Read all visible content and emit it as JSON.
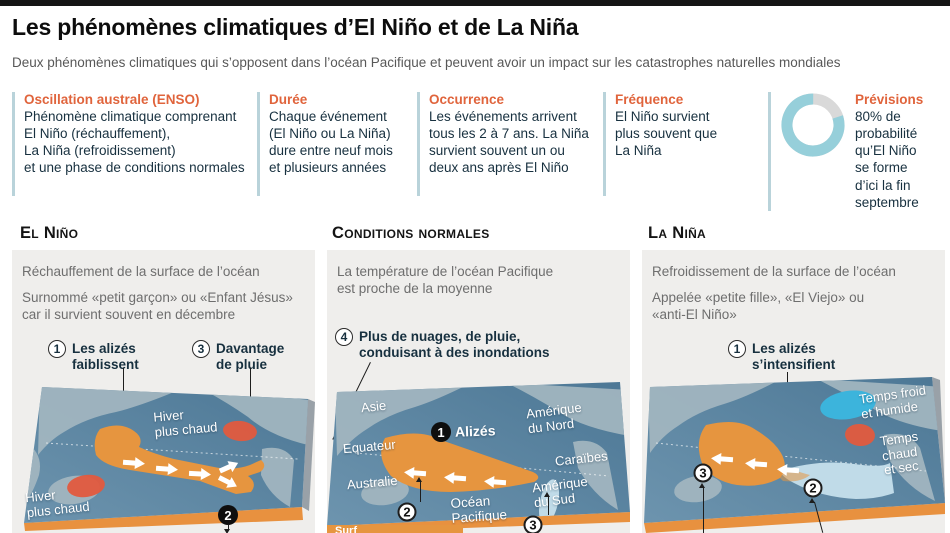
{
  "page": {
    "title": "Les phénomènes climatiques d’El Niño et de La Niña",
    "subtitle": "Deux phénomènes climatiques qui s’opposent dans l’océan Pacifique et peuvent avoir un impact sur les catastrophes naturelles mondiales"
  },
  "colors": {
    "accent_orange": "#e0643c",
    "navy_text": "#17303f",
    "divider_blue": "#b9d3da",
    "panel_gray": "#efeeec",
    "warm_orange": "#e6953f",
    "hot_red": "#e15a3e",
    "cool_blue": "#cbe4ef",
    "cold_cyan": "#3cb4dc",
    "donut_blue": "#96cfda",
    "donut_gray": "#d9d9d9"
  },
  "info_boxes": [
    {
      "heading": "Oscillation australe (ENSO)",
      "body": "Phénomène climatique comprenant\nEl Niño (réchauffement),\nLa Niña (refroidissement)\net une phase de conditions normales"
    },
    {
      "heading": "Durée",
      "body": "Chaque événement\n(El Niño ou La Niña)\ndure entre neuf mois\net plusieurs années"
    },
    {
      "heading": "Occurrence",
      "body": "Les événements arrivent\ntous les 2 à 7 ans. La Niña\nsurvient souvent un ou\ndeux ans après El Niño"
    },
    {
      "heading": "Fréquence",
      "body": "El Niño survient\nplus souvent que\nLa Niña"
    },
    {
      "heading": "Prévisions",
      "body": "80% de\nprobabilité\nqu’El Niño\nse forme\nd’ici la fin\nseptembre",
      "donut_percent": 80
    }
  ],
  "chart_data": {
    "type": "pie",
    "title": "Prévisions",
    "categories": [
      "Probabilité qu’El Niño se forme d’ici la fin septembre",
      "Reste"
    ],
    "values": [
      80,
      20
    ],
    "colors": [
      "#96cfda",
      "#d9d9d9"
    ]
  },
  "sections": {
    "el_nino": {
      "title": "El Niño",
      "desc1": "Réchauffement de la surface de l’océan",
      "desc2": "Surnommé «petit garçon» ou «Enfant Jésus»\ncar il survient souvent en décembre",
      "step1_num": "1",
      "step1_label": "Les alizés\nfaiblissent",
      "step3_num": "3",
      "step3_label": "Davantage\nde pluie",
      "marker2_num": "2",
      "map_label_winter_ne": "Hiver\nplus chaud",
      "map_label_winter_sw": "Hiver\nplus chaud"
    },
    "normal": {
      "title": "Conditions normales",
      "desc1": "La température de l’océan Pacifique\nest proche de la moyenne",
      "step4_num": "4",
      "step4_label": "Plus de nuages, de pluie,\nconduisant à des inondations",
      "marker1_num": "1",
      "trade_winds_label": "Alizés",
      "marker2_num": "2",
      "marker3_num": "3",
      "map_labels": {
        "asia": "Asie",
        "equator": "Equateur",
        "australia": "Australie",
        "north_america": "Amérique\ndu Nord",
        "caribbean": "Caraïbes",
        "south_america": "Amérique\ndu Sud",
        "pacific_ocean": "Océan\nPacifique",
        "partial_bottom": "Surf"
      }
    },
    "la_nina": {
      "title": "La Niña",
      "desc1": "Refroidissement de la surface de l’océan",
      "desc2": "Appelée «petite fille», «El Viejo» ou\n«anti-El Niño»",
      "step1_num": "1",
      "step1_label": "Les alizés\ns’intensifient",
      "marker3_num": "3",
      "marker2_num": "2",
      "map_label_cold_wet": "Temps froid\net humide",
      "map_label_warm_dry": "Temps\nchaud\net sec"
    }
  }
}
